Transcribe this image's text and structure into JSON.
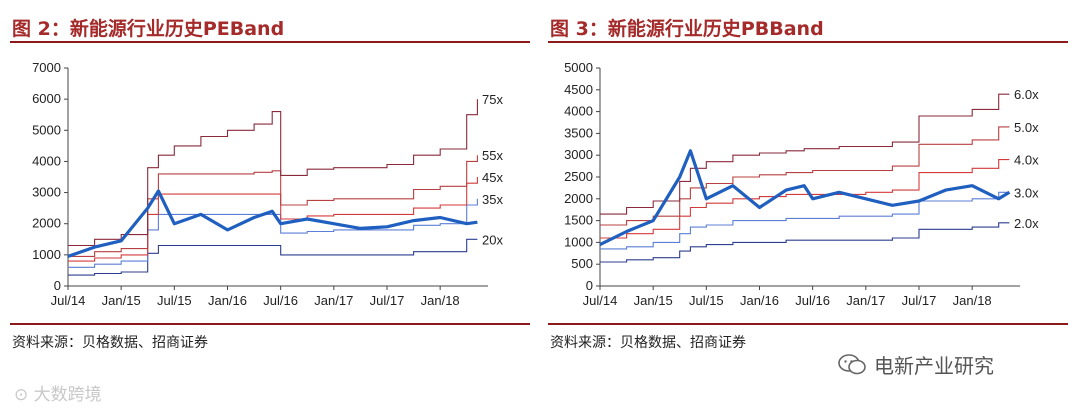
{
  "watermark_left": "大数跨境",
  "watermark_right": "电新产业研究",
  "colors": {
    "price": "#1f5fbf",
    "title": "#a52a2a",
    "rule": "#8b1a1a"
  },
  "chart_data": [
    {
      "type": "line",
      "title": "图 2：新能源行业历史PEBand",
      "source": "资料来源：贝格数据、招商证券",
      "x_tick_labels": [
        "Jul/14",
        "Jan/15",
        "Jul/15",
        "Jan/16",
        "Jul/16",
        "Jan/17",
        "Jul/17",
        "Jan/18"
      ],
      "x": [
        2014.5,
        2014.75,
        2015.0,
        2015.25,
        2015.35,
        2015.5,
        2015.75,
        2016.0,
        2016.25,
        2016.42,
        2016.5,
        2016.75,
        2017.0,
        2017.25,
        2017.5,
        2017.75,
        2018.0,
        2018.25,
        2018.35
      ],
      "y_ticks": [
        0,
        1000,
        2000,
        3000,
        4000,
        5000,
        6000,
        7000
      ],
      "ylim": [
        0,
        7000
      ],
      "series": [
        {
          "name": "price",
          "role": "price",
          "values": [
            950,
            1250,
            1450,
            2500,
            3050,
            2000,
            2300,
            1800,
            2200,
            2400,
            2000,
            2150,
            2000,
            1850,
            1900,
            2100,
            2200,
            2000,
            2050
          ]
        },
        {
          "name": "20x",
          "values": [
            350,
            400,
            450,
            1050,
            1300,
            1300,
            1300,
            1300,
            1300,
            1300,
            1000,
            1000,
            1000,
            1000,
            1000,
            1100,
            1100,
            1500,
            1500
          ]
        },
        {
          "name": "35x",
          "values": [
            600,
            700,
            800,
            1800,
            2300,
            2300,
            2300,
            2300,
            2300,
            2300,
            1700,
            1750,
            1800,
            1800,
            1800,
            1950,
            2000,
            2600,
            2800
          ]
        },
        {
          "name": "45x",
          "values": [
            800,
            900,
            1000,
            2300,
            2950,
            2950,
            2950,
            2950,
            2950,
            2950,
            2150,
            2250,
            2300,
            2300,
            2300,
            2500,
            2600,
            3300,
            3500
          ]
        },
        {
          "name": "55x",
          "values": [
            950,
            1100,
            1200,
            2800,
            3600,
            3600,
            3600,
            3600,
            3650,
            3700,
            2600,
            2750,
            2800,
            2800,
            2800,
            3100,
            3200,
            4000,
            4200
          ]
        },
        {
          "name": "75x",
          "values": [
            1300,
            1500,
            1650,
            3800,
            4200,
            4500,
            4800,
            5000,
            5200,
            5600,
            3550,
            3750,
            3800,
            3800,
            3900,
            4200,
            4400,
            5500,
            6000
          ]
        }
      ]
    },
    {
      "type": "line",
      "title": "图 3：新能源行业历史PBBand",
      "source": "资料来源：贝格数据、招商证券",
      "x_tick_labels": [
        "Jul/14",
        "Jan/15",
        "Jul/15",
        "Jan/16",
        "Jul/16",
        "Jan/17",
        "Jul/17",
        "Jan/18"
      ],
      "x": [
        2014.5,
        2014.75,
        2015.0,
        2015.25,
        2015.35,
        2015.5,
        2015.75,
        2016.0,
        2016.25,
        2016.42,
        2016.5,
        2016.75,
        2017.0,
        2017.25,
        2017.5,
        2017.75,
        2018.0,
        2018.25,
        2018.35
      ],
      "y_ticks": [
        0,
        500,
        1000,
        1500,
        2000,
        2500,
        3000,
        3500,
        4000,
        4500,
        5000
      ],
      "ylim": [
        0,
        5000
      ],
      "series": [
        {
          "name": "price",
          "role": "price",
          "values": [
            950,
            1250,
            1500,
            2500,
            3100,
            2000,
            2300,
            1800,
            2200,
            2300,
            2000,
            2150,
            2000,
            1850,
            1950,
            2200,
            2300,
            2000,
            2150
          ]
        },
        {
          "name": "2.0x",
          "values": [
            550,
            600,
            650,
            800,
            900,
            950,
            1000,
            1000,
            1050,
            1050,
            1050,
            1050,
            1050,
            1100,
            1300,
            1300,
            1350,
            1450,
            1450
          ]
        },
        {
          "name": "3.0x",
          "values": [
            850,
            900,
            1000,
            1200,
            1350,
            1400,
            1500,
            1500,
            1550,
            1550,
            1550,
            1600,
            1600,
            1650,
            1950,
            1950,
            2000,
            2150,
            2150
          ]
        },
        {
          "name": "4.0x",
          "values": [
            1100,
            1200,
            1300,
            1600,
            1800,
            1900,
            2000,
            2050,
            2100,
            2100,
            2100,
            2100,
            2150,
            2200,
            2600,
            2600,
            2700,
            2900,
            2900
          ]
        },
        {
          "name": "5.0x",
          "values": [
            1400,
            1500,
            1600,
            2000,
            2250,
            2350,
            2500,
            2550,
            2600,
            2600,
            2650,
            2650,
            2650,
            2750,
            3250,
            3250,
            3350,
            3650,
            3650
          ]
        },
        {
          "name": "6.0x",
          "values": [
            1650,
            1800,
            1950,
            2400,
            2700,
            2850,
            3000,
            3050,
            3100,
            3150,
            3150,
            3200,
            3200,
            3300,
            3900,
            3900,
            4050,
            4400,
            4400
          ]
        }
      ]
    }
  ]
}
